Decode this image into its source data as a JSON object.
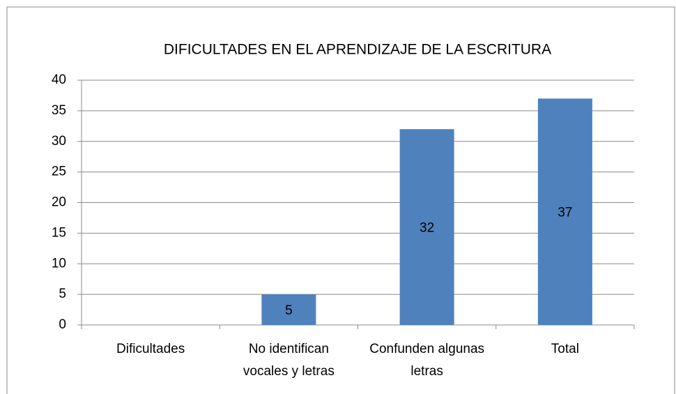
{
  "chart_data": {
    "type": "bar",
    "title": "DIFICULTADES EN EL APRENDIZAJE DE LA ESCRITURA",
    "categories": [
      "Dificultades",
      "No identifican vocales y letras",
      "Confunden algunas letras",
      "Total"
    ],
    "values": [
      null,
      5,
      32,
      37
    ],
    "color": "#4f81bd",
    "ylim": [
      0,
      40
    ],
    "yticks": [
      0,
      5,
      10,
      15,
      20,
      25,
      30,
      35,
      40
    ],
    "grid": true
  }
}
